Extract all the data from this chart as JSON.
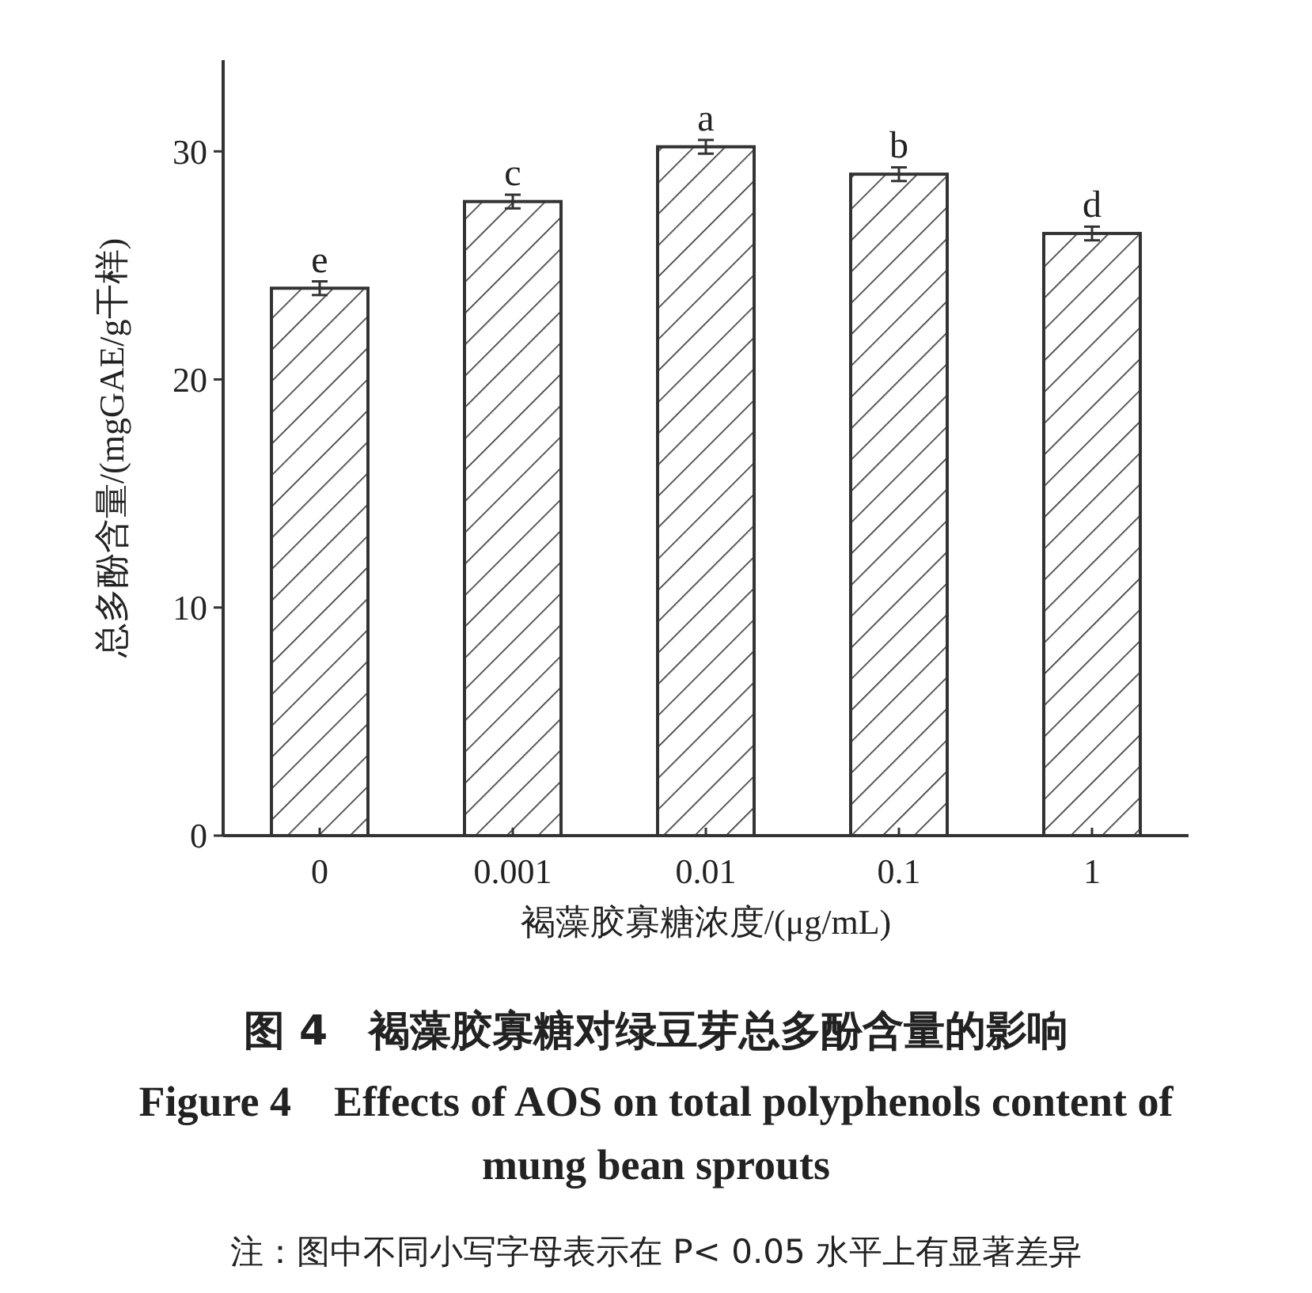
{
  "chart_data": {
    "type": "bar",
    "title": "图 4　褐藻胶寡糖对绿豆芽总多酚含量的影响",
    "subtitle": "Figure 4　Effects of AOS on total polyphenols content of mung bean sprouts",
    "xlabel": "褐藻胶寡糖浓度/(μg/mL)",
    "ylabel": "总多酚含量/(mgGAE/g干样)",
    "categories": [
      "0",
      "0.001",
      "0.01",
      "0.1",
      "1"
    ],
    "values": [
      24.0,
      27.8,
      30.2,
      29.0,
      26.4
    ],
    "errors": [
      0.3,
      0.3,
      0.3,
      0.3,
      0.3
    ],
    "color": "#333333",
    "ylim": [
      0,
      34
    ],
    "yticks": [
      0,
      10,
      20,
      30
    ],
    "annotations": [
      {
        "text": "e",
        "x": "0",
        "y": 24.3
      },
      {
        "text": "c",
        "x": "0.001",
        "y": 28.1
      },
      {
        "text": "a",
        "x": "0.01",
        "y": 30.5
      },
      {
        "text": "b",
        "x": "0.1",
        "y": 29.3
      },
      {
        "text": "d",
        "x": "1",
        "y": 26.7
      },
      "注：图中不同小写字母表示在 P< 0.05 水平上有显著差异"
    ]
  }
}
